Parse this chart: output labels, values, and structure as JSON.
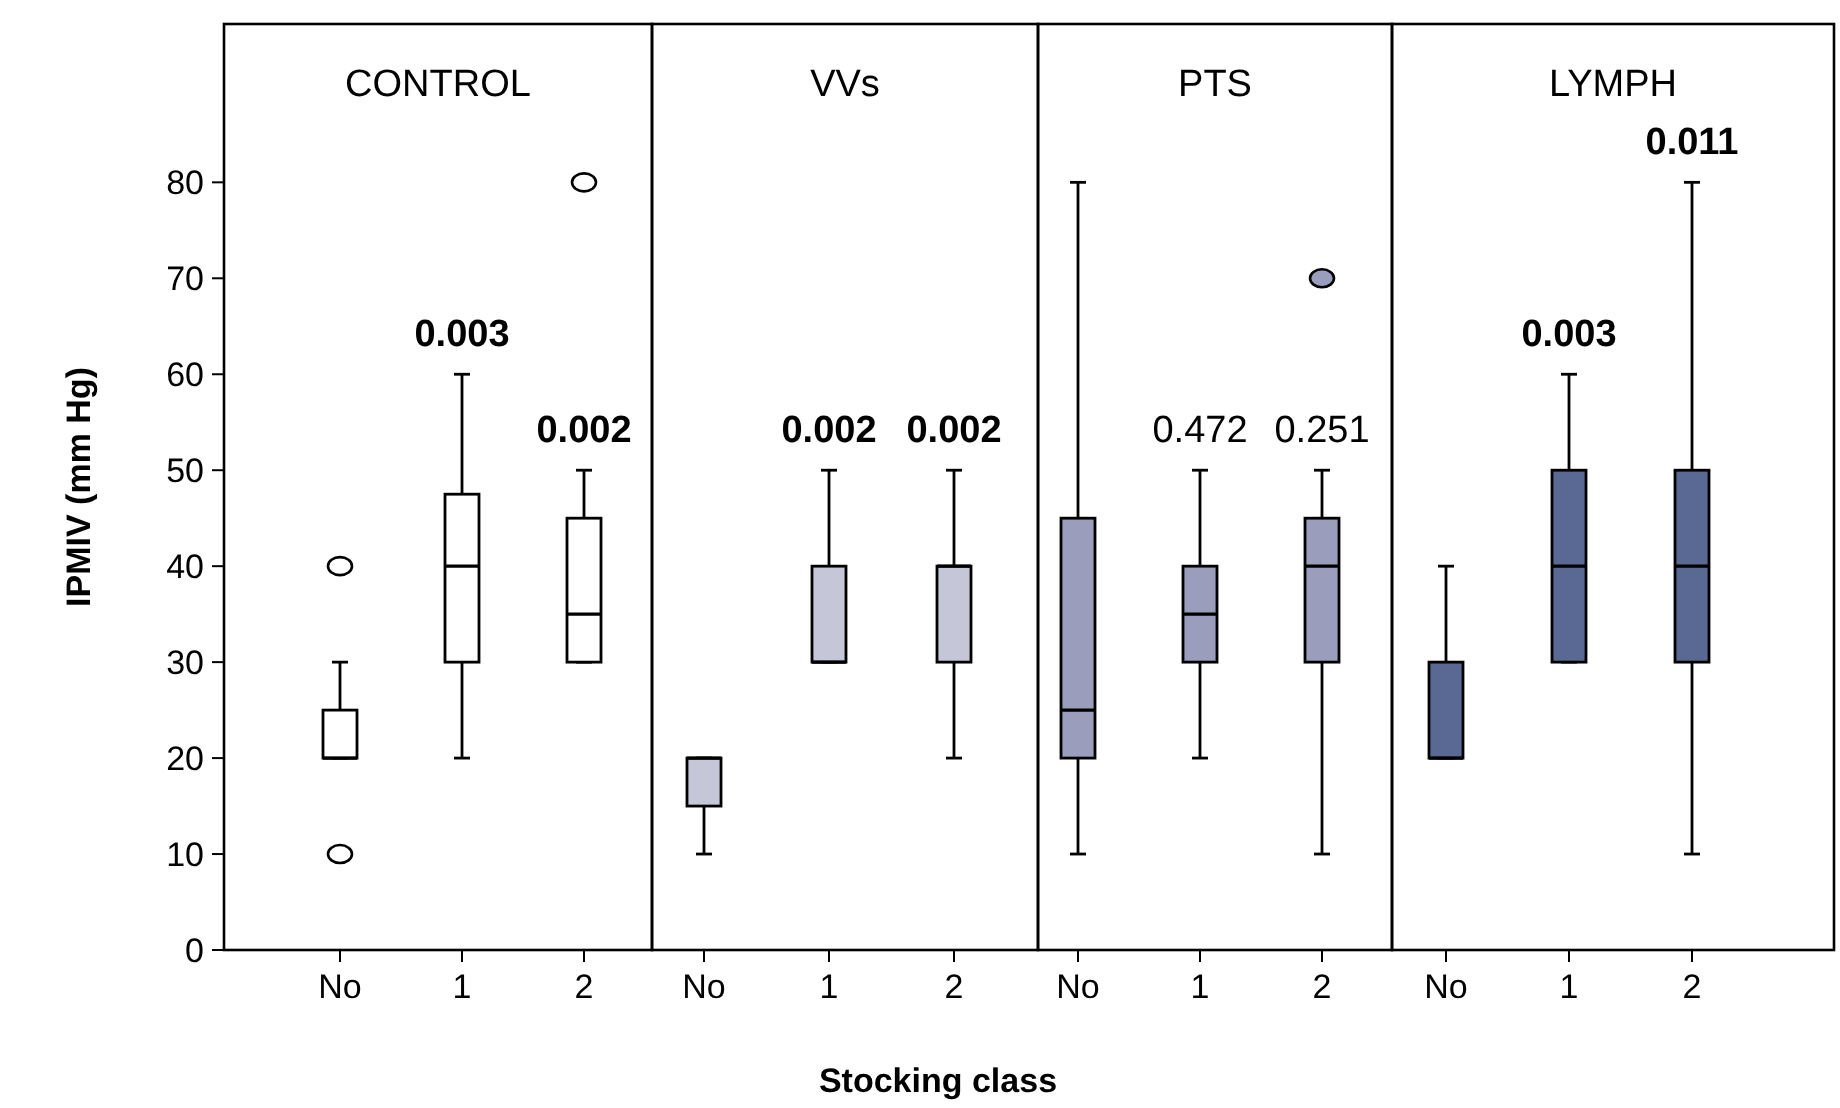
{
  "chart_data": [
    {
      "type": "box",
      "title": "CONTROL",
      "ylabel": "IPMIV (mm Hg)",
      "categories": [
        "No",
        "1",
        "2"
      ],
      "color": "#ffffff",
      "ylim": [
        0,
        96.5
      ],
      "yticks": [
        0,
        10,
        20,
        30,
        40,
        50,
        60,
        70,
        80
      ],
      "boxes": [
        {
          "low": 20,
          "q1": 20,
          "median": 20,
          "q3": 25,
          "high": 30,
          "outliers": [
            40,
            10
          ]
        },
        {
          "low": 20,
          "q1": 30,
          "median": 40,
          "q3": 47.5,
          "high": 60
        },
        {
          "low": 30,
          "q1": 30,
          "median": 35,
          "q3": 45,
          "high": 50,
          "outliers": [
            80
          ]
        }
      ],
      "annotations": [
        {
          "text": "0.003",
          "x": "1",
          "y": 60
        },
        {
          "text": "0.002",
          "x": "2",
          "y": 50
        }
      ]
    },
    {
      "type": "box",
      "title": "VVs",
      "xlabel": "Stocking class",
      "categories": [
        "No",
        "1",
        "2"
      ],
      "color": "#c5c6d8",
      "ylim": [
        0,
        96.5
      ],
      "yticks": [
        0,
        10,
        20,
        30,
        40,
        50,
        60,
        70,
        80
      ],
      "tick_labels": "x",
      "boxes": [
        {
          "low": 10,
          "q1": 15,
          "median": 20,
          "q3": 20,
          "high": 20
        },
        {
          "low": 30,
          "q1": 30,
          "median": 30,
          "q3": 40,
          "high": 50
        },
        {
          "low": 20,
          "q1": 30,
          "median": 40,
          "q3": 40,
          "high": 50
        }
      ],
      "annotations": [
        {
          "text": "0.002",
          "x": "1",
          "y": 50
        },
        {
          "text": "0.002",
          "x": "2",
          "y": 50
        }
      ]
    },
    {
      "type": "box",
      "title": "PTS",
      "categories": [
        "No",
        "1",
        "2"
      ],
      "color": "#9a9dbb",
      "ylim": [
        0,
        96.5
      ],
      "yticks": [
        0,
        10,
        20,
        30,
        40,
        50,
        60,
        70,
        80
      ],
      "tick_labels": "x",
      "boxes": [
        {
          "low": 10,
          "q1": 20,
          "median": 25,
          "q3": 45,
          "high": 80
        },
        {
          "low": 20,
          "q1": 30,
          "median": 35,
          "q3": 40,
          "high": 50
        },
        {
          "low": 10,
          "q1": 30,
          "median": 40,
          "q3": 45,
          "high": 50,
          "outliers": [
            70
          ]
        }
      ],
      "annotations": [
        {
          "text": "0.472",
          "x": "1",
          "y": 50
        },
        {
          "text": "0.251",
          "x": "2",
          "y": 50
        }
      ]
    },
    {
      "type": "box",
      "title": "LYMPH",
      "categories": [
        "No",
        "1",
        "2"
      ],
      "color": "#5a6894",
      "ylim": [
        0,
        96.5
      ],
      "yticks": [
        0,
        10,
        20,
        30,
        40,
        50,
        60,
        70,
        80
      ],
      "tick_labels": "x",
      "boxes": [
        {
          "low": 20,
          "q1": 20,
          "median": 20,
          "q3": 30,
          "high": 40
        },
        {
          "low": 30,
          "q1": 30,
          "median": 40,
          "q3": 50,
          "high": 60
        },
        {
          "low": 10,
          "q1": 30,
          "median": 40,
          "q3": 50,
          "high": 80
        }
      ],
      "annotations": [
        {
          "text": "0.003",
          "x": "1",
          "y": 60
        },
        {
          "text": "0.011",
          "x": "2",
          "y": 80
        }
      ]
    }
  ]
}
